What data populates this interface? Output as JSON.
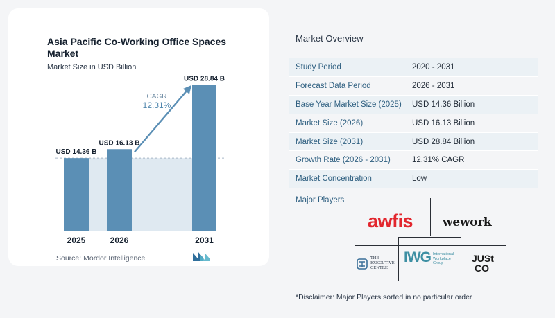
{
  "chart_data": {
    "type": "bar",
    "title": "Asia Pacific Co-Working Office Spaces Market",
    "subtitle": "Market Size in USD Billion",
    "categories": [
      "2025",
      "2026",
      "2031"
    ],
    "values": [
      14.36,
      16.13,
      28.84
    ],
    "value_labels": [
      "USD 14.36 B",
      "USD 16.13 B",
      "USD 28.84 B"
    ],
    "ylim": [
      0,
      30
    ],
    "cagr_label": "CAGR",
    "cagr_value": "12.31%",
    "bar_color": "#5b8fb5",
    "band_color": "#dfe9f1",
    "arrow_color": "#5b8fb5"
  },
  "source": "Source:  Mordor Intelligence",
  "overview": {
    "title": "Market Overview",
    "rows": [
      {
        "key": "Study Period",
        "value": "2020 - 2031"
      },
      {
        "key": "Forecast Data Period",
        "value": "2026 - 2031"
      },
      {
        "key": "Base Year Market Size (2025)",
        "value": "USD 14.36 Billion"
      },
      {
        "key": "Market Size (2026)",
        "value": "USD 16.13 Billion"
      },
      {
        "key": "Market Size (2031)",
        "value": "USD 28.84 Billion"
      },
      {
        "key": "Growth Rate (2026 - 2031)",
        "value": "12.31% CAGR"
      },
      {
        "key": "Market Concentration",
        "value": "Low"
      }
    ]
  },
  "players": {
    "title": "Major Players",
    "awfis": "awfis",
    "wework": "wework",
    "tec_line1": "THE",
    "tec_line2": "EXECUTIVE",
    "tec_line3": "CENTRE",
    "iwg_mark": "IWG",
    "iwg_line1": "International",
    "iwg_line2": "Workplace",
    "iwg_line3": "Group",
    "justco_line1": "JUSt",
    "justco_line2": "CO"
  },
  "disclaimer": "*Disclaimer: Major Players sorted in no particular order"
}
